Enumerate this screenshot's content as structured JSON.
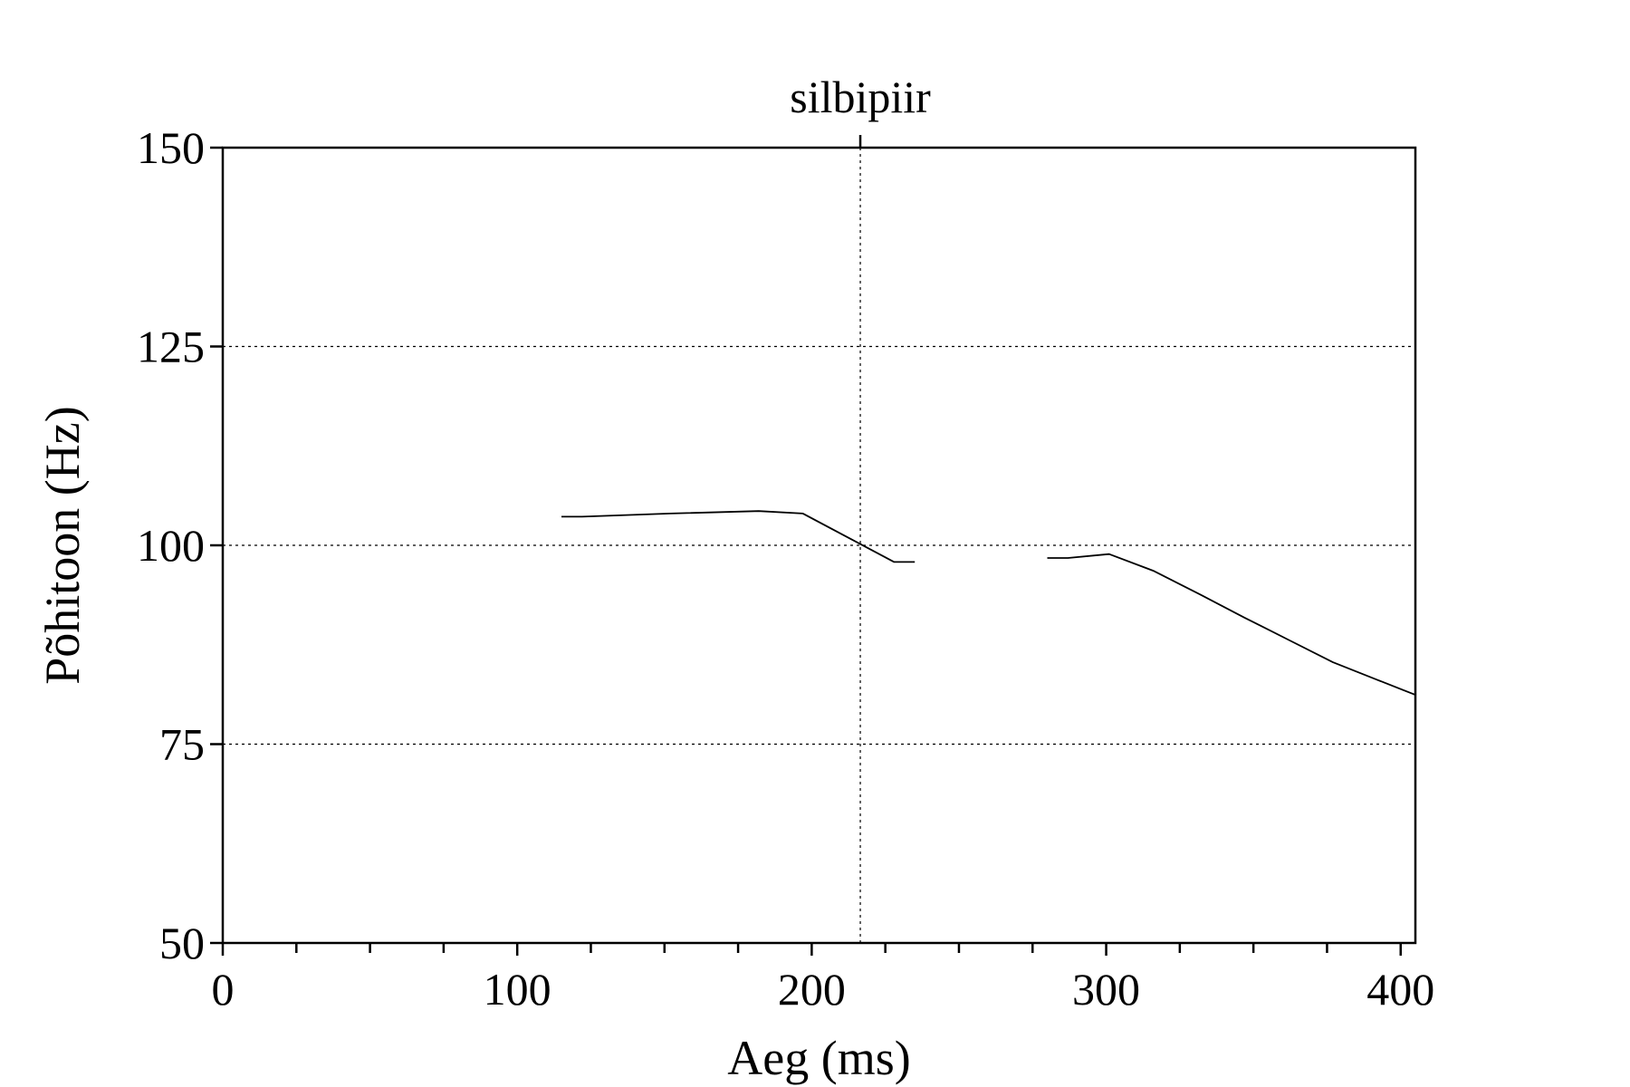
{
  "chart_data": {
    "type": "line",
    "title": "",
    "xlabel": "Aeg (ms)",
    "ylabel": "Põhitoon (Hz)",
    "xlim": [
      0,
      405
    ],
    "ylim": [
      50,
      150
    ],
    "x_ticks": [
      0,
      100,
      200,
      300,
      400
    ],
    "x_minor_ticks": [
      25,
      50,
      75,
      125,
      150,
      175,
      225,
      250,
      275,
      325,
      350,
      375
    ],
    "y_ticks": [
      50,
      75,
      100,
      125,
      150
    ],
    "grid": {
      "horizontal": true,
      "vertical": false
    },
    "marker": {
      "label": "silbipiir",
      "x": 216.5
    },
    "series": [
      {
        "segments": [
          [
            [
              115,
              103.6
            ],
            [
              122,
              103.6
            ],
            [
              152,
              104.0
            ],
            [
              182,
              104.3
            ],
            [
              197,
              104.0
            ],
            [
              228,
              97.9
            ],
            [
              235,
              97.9
            ]
          ],
          [
            [
              280,
              98.4
            ],
            [
              287,
              98.4
            ],
            [
              301,
              98.9
            ],
            [
              316,
              96.8
            ],
            [
              332,
              93.8
            ],
            [
              347,
              90.9
            ],
            [
              362,
              88.1
            ],
            [
              377,
              85.3
            ],
            [
              392,
              83.1
            ],
            [
              405,
              81.2
            ]
          ]
        ]
      }
    ],
    "colors": {
      "line": "#000000",
      "axis": "#000000",
      "background": "#ffffff"
    }
  }
}
